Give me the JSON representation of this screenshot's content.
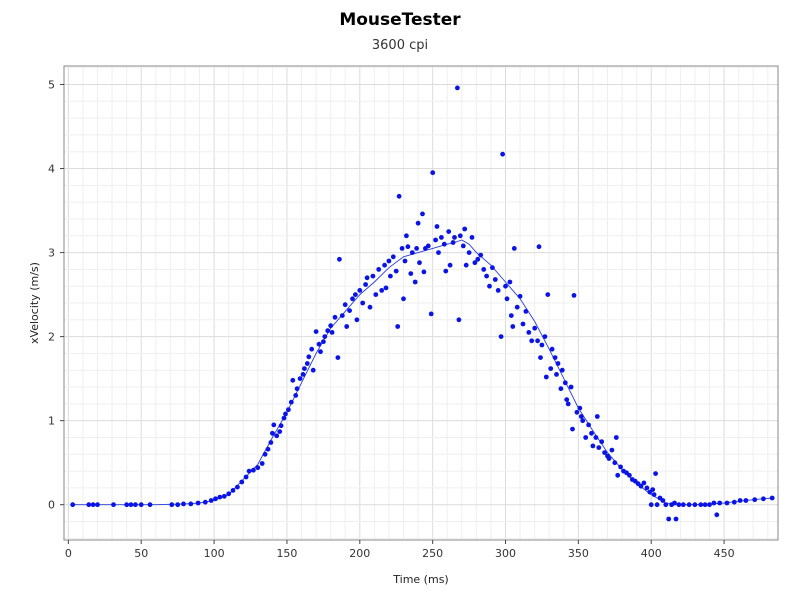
{
  "chart_data": {
    "type": "scatter",
    "title": "MouseTester",
    "subtitle": "3600 cpi",
    "xlabel": "Time (ms)",
    "ylabel": "xVelocity (m/s)",
    "xlim": [
      -3,
      487
    ],
    "ylim": [
      -0.42,
      5.22
    ],
    "xticks": [
      0,
      50,
      100,
      150,
      200,
      250,
      300,
      350,
      400,
      450
    ],
    "yticks": [
      0,
      1,
      2,
      3,
      4,
      5
    ],
    "grid": true,
    "point_color": "#0a14e6",
    "line_color": "#2a3cd8",
    "series": [
      {
        "type": "scatter",
        "points": [
          [
            3,
            0
          ],
          [
            14,
            0
          ],
          [
            17,
            0
          ],
          [
            20,
            0
          ],
          [
            31,
            0
          ],
          [
            40,
            0
          ],
          [
            43,
            0
          ],
          [
            46,
            0
          ],
          [
            50,
            0
          ],
          [
            56,
            0
          ],
          [
            71,
            0
          ],
          [
            75,
            0
          ],
          [
            79,
            0.01
          ],
          [
            84,
            0.01
          ],
          [
            89,
            0.02
          ],
          [
            94,
            0.03
          ],
          [
            98,
            0.05
          ],
          [
            101,
            0.07
          ],
          [
            104,
            0.09
          ],
          [
            107,
            0.1
          ],
          [
            110,
            0.13
          ],
          [
            113,
            0.17
          ],
          [
            116,
            0.21
          ],
          [
            119,
            0.27
          ],
          [
            122,
            0.33
          ],
          [
            124,
            0.4
          ],
          [
            127,
            0.41
          ],
          [
            130,
            0.44
          ],
          [
            133,
            0.49
          ],
          [
            135,
            0.6
          ],
          [
            137,
            0.66
          ],
          [
            139,
            0.74
          ],
          [
            140,
            0.85
          ],
          [
            141,
            0.95
          ],
          [
            143,
            0.82
          ],
          [
            145,
            0.87
          ],
          [
            146,
            0.94
          ],
          [
            148,
            1.03
          ],
          [
            149,
            1.08
          ],
          [
            151,
            1.13
          ],
          [
            153,
            1.22
          ],
          [
            154,
            1.48
          ],
          [
            156,
            1.3
          ],
          [
            157,
            1.38
          ],
          [
            159,
            1.5
          ],
          [
            161,
            1.55
          ],
          [
            162,
            1.62
          ],
          [
            164,
            1.68
          ],
          [
            165,
            1.76
          ],
          [
            167,
            1.85
          ],
          [
            168,
            1.6
          ],
          [
            170,
            2.06
          ],
          [
            172,
            1.91
          ],
          [
            173,
            1.82
          ],
          [
            175,
            1.94
          ],
          [
            176,
            2.0
          ],
          [
            178,
            2.07
          ],
          [
            180,
            2.13
          ],
          [
            181,
            2.05
          ],
          [
            183,
            2.23
          ],
          [
            185,
            1.75
          ],
          [
            186,
            2.92
          ],
          [
            188,
            2.25
          ],
          [
            190,
            2.38
          ],
          [
            191,
            2.12
          ],
          [
            193,
            2.31
          ],
          [
            195,
            2.45
          ],
          [
            197,
            2.5
          ],
          [
            198,
            2.2
          ],
          [
            200,
            2.55
          ],
          [
            202,
            2.4
          ],
          [
            204,
            2.62
          ],
          [
            205,
            2.7
          ],
          [
            207,
            2.35
          ],
          [
            209,
            2.72
          ],
          [
            211,
            2.5
          ],
          [
            213,
            2.8
          ],
          [
            215,
            2.55
          ],
          [
            217,
            2.85
          ],
          [
            218,
            2.58
          ],
          [
            220,
            2.9
          ],
          [
            221,
            2.72
          ],
          [
            223,
            2.95
          ],
          [
            225,
            2.78
          ],
          [
            226,
            2.12
          ],
          [
            227,
            3.67
          ],
          [
            229,
            3.05
          ],
          [
            230,
            2.45
          ],
          [
            231,
            2.9
          ],
          [
            232,
            3.2
          ],
          [
            233,
            3.07
          ],
          [
            235,
            2.75
          ],
          [
            236,
            3.0
          ],
          [
            238,
            2.65
          ],
          [
            239,
            3.05
          ],
          [
            240,
            3.35
          ],
          [
            241,
            2.88
          ],
          [
            243,
            3.46
          ],
          [
            244,
            2.77
          ],
          [
            245,
            3.05
          ],
          [
            247,
            3.08
          ],
          [
            249,
            2.27
          ],
          [
            250,
            3.95
          ],
          [
            252,
            3.15
          ],
          [
            253,
            3.31
          ],
          [
            254,
            3.0
          ],
          [
            256,
            3.18
          ],
          [
            258,
            3.1
          ],
          [
            259,
            2.78
          ],
          [
            261,
            3.25
          ],
          [
            262,
            2.85
          ],
          [
            264,
            3.12
          ],
          [
            265,
            3.18
          ],
          [
            267,
            4.96
          ],
          [
            268,
            2.2
          ],
          [
            269,
            3.2
          ],
          [
            271,
            3.08
          ],
          [
            272,
            3.28
          ],
          [
            273,
            2.85
          ],
          [
            275,
            3.0
          ],
          [
            277,
            3.18
          ],
          [
            279,
            2.88
          ],
          [
            281,
            2.92
          ],
          [
            283,
            2.97
          ],
          [
            285,
            2.8
          ],
          [
            287,
            2.72
          ],
          [
            289,
            2.6
          ],
          [
            291,
            2.82
          ],
          [
            293,
            2.68
          ],
          [
            295,
            2.55
          ],
          [
            297,
            2.0
          ],
          [
            298,
            4.17
          ],
          [
            300,
            2.6
          ],
          [
            301,
            2.45
          ],
          [
            303,
            2.65
          ],
          [
            304,
            2.25
          ],
          [
            305,
            2.12
          ],
          [
            306,
            3.05
          ],
          [
            308,
            2.35
          ],
          [
            310,
            2.48
          ],
          [
            312,
            2.15
          ],
          [
            314,
            2.3
          ],
          [
            316,
            2.05
          ],
          [
            318,
            1.95
          ],
          [
            320,
            2.1
          ],
          [
            322,
            1.95
          ],
          [
            323,
            3.07
          ],
          [
            324,
            1.75
          ],
          [
            325,
            1.9
          ],
          [
            327,
            2.0
          ],
          [
            328,
            1.52
          ],
          [
            329,
            2.5
          ],
          [
            331,
            1.62
          ],
          [
            332,
            1.85
          ],
          [
            334,
            1.75
          ],
          [
            335,
            1.55
          ],
          [
            336,
            1.68
          ],
          [
            338,
            1.38
          ],
          [
            339,
            1.6
          ],
          [
            341,
            1.45
          ],
          [
            342,
            1.25
          ],
          [
            343,
            1.2
          ],
          [
            345,
            1.4
          ],
          [
            346,
            0.9
          ],
          [
            347,
            2.49
          ],
          [
            349,
            1.1
          ],
          [
            351,
            1.15
          ],
          [
            352,
            1.05
          ],
          [
            353,
            1.0
          ],
          [
            355,
            0.8
          ],
          [
            357,
            0.95
          ],
          [
            359,
            0.85
          ],
          [
            360,
            0.7
          ],
          [
            362,
            0.8
          ],
          [
            363,
            1.05
          ],
          [
            364,
            0.68
          ],
          [
            366,
            0.75
          ],
          [
            368,
            0.62
          ],
          [
            370,
            0.58
          ],
          [
            371,
            0.55
          ],
          [
            373,
            0.65
          ],
          [
            375,
            0.5
          ],
          [
            376,
            0.8
          ],
          [
            377,
            0.35
          ],
          [
            379,
            0.45
          ],
          [
            381,
            0.4
          ],
          [
            383,
            0.38
          ],
          [
            385,
            0.35
          ],
          [
            387,
            0.3
          ],
          [
            389,
            0.28
          ],
          [
            391,
            0.25
          ],
          [
            393,
            0.22
          ],
          [
            395,
            0.26
          ],
          [
            397,
            0.2
          ],
          [
            399,
            0.15
          ],
          [
            400,
            0.0
          ],
          [
            401,
            0.18
          ],
          [
            402,
            0.12
          ],
          [
            403,
            0.37
          ],
          [
            404,
            0.0
          ],
          [
            406,
            0.08
          ],
          [
            408,
            0.05
          ],
          [
            410,
            0.0
          ],
          [
            412,
            -0.17
          ],
          [
            414,
            0.0
          ],
          [
            416,
            0.02
          ],
          [
            417,
            -0.17
          ],
          [
            419,
            0.0
          ],
          [
            422,
            0.0
          ],
          [
            426,
            0.0
          ],
          [
            430,
            0.0
          ],
          [
            434,
            0.0
          ],
          [
            437,
            0.0
          ],
          [
            440,
            0.0
          ],
          [
            443,
            0.02
          ],
          [
            445,
            -0.12
          ],
          [
            447,
            0.02
          ],
          [
            452,
            0.02
          ],
          [
            457,
            0.03
          ],
          [
            461,
            0.05
          ],
          [
            465,
            0.05
          ],
          [
            471,
            0.06
          ],
          [
            477,
            0.07
          ],
          [
            483,
            0.08
          ]
        ]
      },
      {
        "type": "line",
        "points": [
          [
            3,
            0
          ],
          [
            20,
            0
          ],
          [
            40,
            0
          ],
          [
            60,
            0
          ],
          [
            80,
            0.01
          ],
          [
            90,
            0.02
          ],
          [
            100,
            0.05
          ],
          [
            110,
            0.12
          ],
          [
            120,
            0.3
          ],
          [
            130,
            0.48
          ],
          [
            140,
            0.8
          ],
          [
            150,
            1.1
          ],
          [
            160,
            1.45
          ],
          [
            170,
            1.8
          ],
          [
            180,
            2.1
          ],
          [
            190,
            2.3
          ],
          [
            200,
            2.5
          ],
          [
            210,
            2.65
          ],
          [
            220,
            2.82
          ],
          [
            230,
            2.95
          ],
          [
            240,
            3.0
          ],
          [
            250,
            3.05
          ],
          [
            260,
            3.1
          ],
          [
            265,
            3.12
          ],
          [
            270,
            3.15
          ],
          [
            275,
            3.1
          ],
          [
            280,
            3.0
          ],
          [
            290,
            2.85
          ],
          [
            300,
            2.65
          ],
          [
            310,
            2.45
          ],
          [
            320,
            2.18
          ],
          [
            330,
            1.85
          ],
          [
            340,
            1.5
          ],
          [
            350,
            1.15
          ],
          [
            360,
            0.88
          ],
          [
            370,
            0.62
          ],
          [
            380,
            0.42
          ],
          [
            390,
            0.25
          ],
          [
            400,
            0.12
          ],
          [
            410,
            0.02
          ],
          [
            420,
            0.0
          ],
          [
            430,
            0.0
          ],
          [
            440,
            0.01
          ],
          [
            450,
            0.02
          ],
          [
            460,
            0.04
          ],
          [
            470,
            0.06
          ],
          [
            483,
            0.08
          ]
        ]
      }
    ]
  }
}
